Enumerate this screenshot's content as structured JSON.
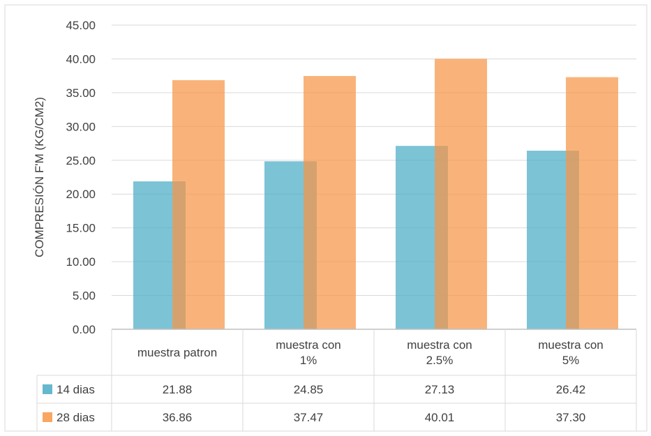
{
  "chart_data": {
    "type": "bar",
    "ylabel": "COMPRESIÓN F'M (KG/CM2)",
    "ylim": [
      0,
      45
    ],
    "ytick_step": 5,
    "ytick_labels": [
      "0.00",
      "5.00",
      "10.00",
      "15.00",
      "20.00",
      "25.00",
      "30.00",
      "35.00",
      "40.00",
      "45.00"
    ],
    "grid": true,
    "data_table": true,
    "categories": [
      [
        "muestra patron"
      ],
      [
        "muestra con",
        "1%"
      ],
      [
        "muestra con",
        "2.5%"
      ],
      [
        "muestra con",
        "5%"
      ]
    ],
    "series": [
      {
        "name": "14 dias",
        "color": "#4bacc6",
        "values": [
          21.88,
          24.85,
          27.13,
          26.42
        ],
        "value_labels": [
          "21.88",
          "24.85",
          "27.13",
          "26.42"
        ]
      },
      {
        "name": "28 dias",
        "color": "#f79646",
        "values": [
          36.86,
          37.47,
          40.01,
          37.3
        ],
        "value_labels": [
          "36.86",
          "37.47",
          "40.01",
          "37.30"
        ]
      }
    ]
  }
}
